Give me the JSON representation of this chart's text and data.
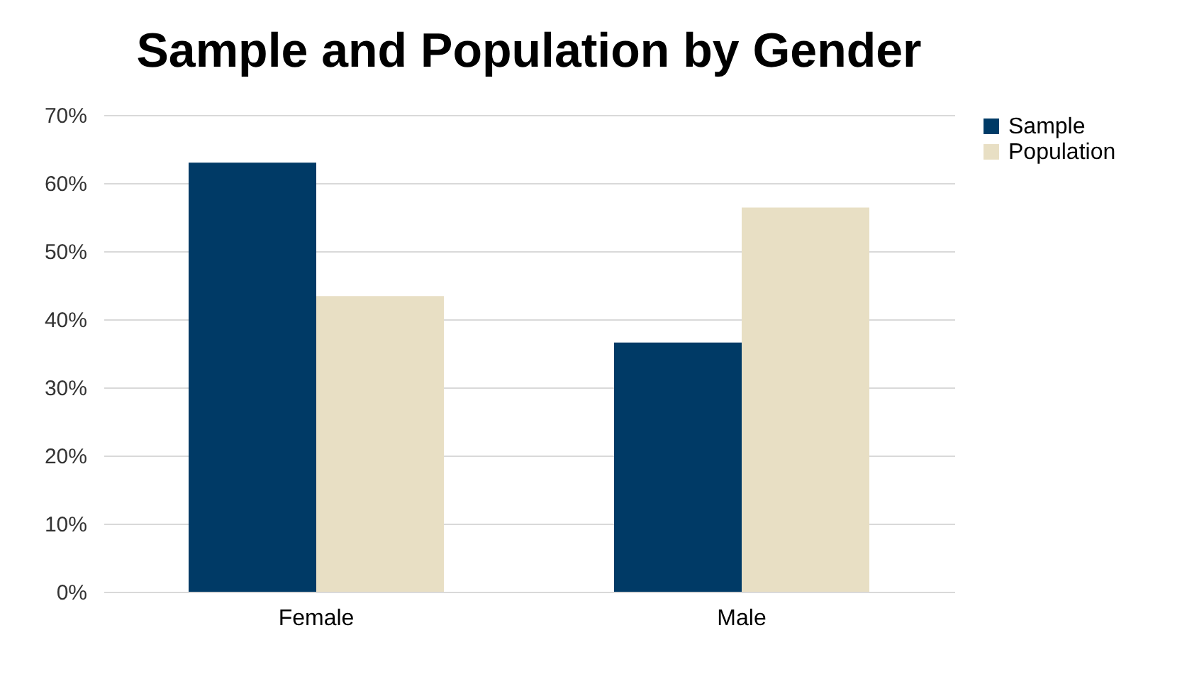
{
  "chart_data": {
    "type": "bar",
    "title": "Sample and Population by Gender",
    "categories": [
      "Female",
      "Male"
    ],
    "series": [
      {
        "name": "Sample",
        "color": "#003a66",
        "values": [
          63,
          36.6
        ]
      },
      {
        "name": "Population",
        "color": "#e8dfc4",
        "values": [
          43.4,
          56.4
        ]
      }
    ],
    "ylim": [
      0,
      70
    ],
    "yticks": [
      {
        "value": 0,
        "label": "0%"
      },
      {
        "value": 10,
        "label": "10%"
      },
      {
        "value": 20,
        "label": "20%"
      },
      {
        "value": 30,
        "label": "30%"
      },
      {
        "value": 40,
        "label": "40%"
      },
      {
        "value": 50,
        "label": "50%"
      },
      {
        "value": 60,
        "label": "60%"
      },
      {
        "value": 70,
        "label": "70%"
      }
    ],
    "grid": "y",
    "legend": "right"
  }
}
